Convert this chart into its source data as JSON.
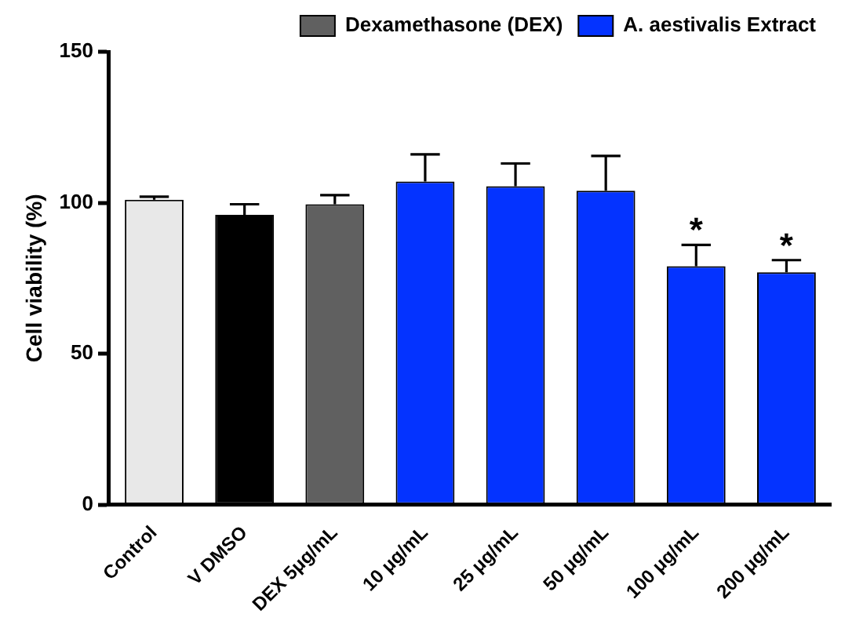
{
  "chart_data": {
    "type": "bar",
    "ylabel": "Cell viability (%)",
    "categories": [
      "Control",
      "V DMSO",
      "DEX 5μg/mL",
      "10 μg/mL",
      "25 μg/mL",
      "50 μg/mL",
      "100 μg/mL",
      "200 μg/mL"
    ],
    "series": [
      {
        "colors": [
          "#e8e8e8",
          "#000000",
          null,
          null,
          null,
          null,
          null,
          null
        ],
        "values": [
          101,
          96,
          null,
          null,
          null,
          null,
          null,
          null
        ],
        "errors": [
          [
            101,
            102
          ],
          [
            96,
            99.5
          ],
          null,
          null,
          null,
          null,
          null,
          null
        ]
      },
      {
        "name": "Dexamethasone (DEX)",
        "color": "#606060",
        "values": [
          null,
          null,
          99.5,
          null,
          null,
          null,
          null,
          null
        ],
        "errors": [
          null,
          null,
          [
            99.5,
            102.5
          ],
          null,
          null,
          null,
          null,
          null
        ]
      },
      {
        "name": "A. aestivalis Extract",
        "color": "#0433ff",
        "values": [
          null,
          null,
          null,
          107,
          105.5,
          104,
          79,
          77
        ],
        "errors": [
          null,
          null,
          null,
          [
            107,
            116
          ],
          [
            105.5,
            113
          ],
          [
            104,
            115.5
          ],
          [
            79,
            86
          ],
          [
            77,
            81
          ]
        ]
      }
    ],
    "ylim": [
      0,
      150
    ],
    "yticks": [
      0,
      50,
      100,
      150
    ],
    "grid": false,
    "legend": "top right",
    "annotations": [
      {
        "text": "*",
        "x": "100 μg/mL",
        "y": 86
      },
      {
        "text": "*",
        "x": "200 μg/mL",
        "y": 81
      }
    ]
  }
}
